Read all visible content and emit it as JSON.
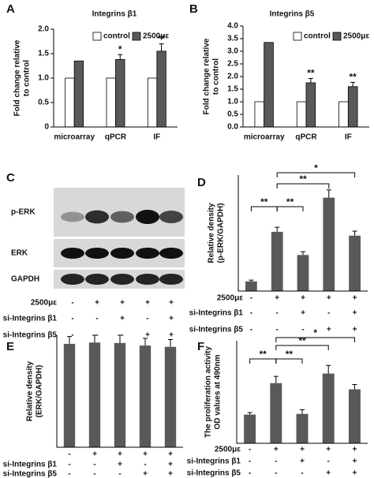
{
  "chart_data": [
    {
      "type": "grouped-bar",
      "panel": "A",
      "title": "Integrins β1",
      "ylabel": [
        "Fold change relative",
        "to control"
      ],
      "categories": [
        "microarray",
        "qPCR",
        "IF"
      ],
      "series": [
        {
          "name": "control",
          "color": "#ffffff",
          "values": [
            1,
            1,
            1
          ]
        },
        {
          "name": "2500με",
          "color": "#595959",
          "values": [
            1.35,
            1.38,
            1.55
          ],
          "errors": [
            null,
            0.1,
            0.15
          ]
        }
      ],
      "ylim": [
        0,
        2
      ],
      "yticks": [
        0,
        0.5,
        {
          "value": 1,
          "label": "1.0"
        },
        1.5,
        {
          "value": 2,
          "label": "2.0"
        }
      ],
      "annotations": [
        {
          "category": "qPCR",
          "text": "*"
        },
        {
          "category": "IF",
          "text": "**"
        }
      ],
      "legend": "top"
    },
    {
      "type": "grouped-bar",
      "panel": "B",
      "title": "Integrins β5",
      "ylabel": [
        "Fold change relative",
        "to control"
      ],
      "categories": [
        "microarray",
        "qPCR",
        "IF"
      ],
      "series": [
        {
          "name": "control",
          "color": "#ffffff",
          "values": [
            1,
            1,
            1
          ]
        },
        {
          "name": "2500με",
          "color": "#595959",
          "values": [
            3.35,
            1.75,
            1.6
          ],
          "errors": [
            null,
            0.17,
            0.17
          ]
        }
      ],
      "ylim": [
        0,
        4
      ],
      "yticks": [
        {
          "value": 0,
          "label": "0.0"
        },
        0.5,
        {
          "value": 1,
          "label": "1.0"
        },
        1.5,
        {
          "value": 2,
          "label": "2.0"
        },
        2.5,
        {
          "value": 3,
          "label": "3.0"
        },
        3.5,
        {
          "value": 4,
          "label": "4.0"
        }
      ],
      "annotations": [
        {
          "category": "qPCR",
          "text": "**"
        },
        {
          "category": "IF",
          "text": "**"
        }
      ],
      "legend": "top"
    },
    {
      "type": "bar",
      "panel": "D",
      "ylabel": [
        "Relative density",
        "(p-ERK/GAPDH)"
      ],
      "values": [
        1.5,
        9.2,
        5.6,
        14.5,
        8.6
      ],
      "errors": [
        0.2,
        0.7,
        0.5,
        1.2,
        0.7
      ],
      "color": "#595959",
      "ylim": [
        0,
        18
      ],
      "comparisons": [
        "**",
        "**",
        "**",
        "*"
      ],
      "conditions": {
        "labels": [
          "2500με",
          "si-Integrins β1",
          "si-Integrins β5"
        ],
        "rows": [
          [
            "-",
            "+",
            "+",
            "+",
            "+"
          ],
          [
            "-",
            "-",
            "+",
            "-",
            "+"
          ],
          [
            "-",
            "-",
            "-",
            "+",
            "+"
          ]
        ]
      }
    },
    {
      "type": "bar",
      "panel": "E",
      "ylabel": [
        "Relative density",
        "(ERK/GAPDH)"
      ],
      "values": [
        2.4,
        2.43,
        2.42,
        2.36,
        2.33
      ],
      "errors": [
        0.17,
        0.17,
        0.18,
        0.17,
        0.17
      ],
      "color": "#595959",
      "ylim": [
        0,
        2.6
      ],
      "conditions": {
        "labels": [
          null,
          "si-Integrins β1",
          "si-Integrins β5"
        ],
        "rows": [
          [
            "-",
            "+",
            "+",
            "+",
            "+"
          ],
          [
            "-",
            "-",
            "+",
            "-",
            "+"
          ],
          [
            "-",
            "-",
            "-",
            "+",
            "+"
          ]
        ]
      }
    },
    {
      "type": "bar",
      "panel": "F",
      "ylabel": [
        "The proliferation activity",
        "OD values at 490nm"
      ],
      "values": [
        0.42,
        0.88,
        0.43,
        1.02,
        0.79
      ],
      "errors": [
        0.03,
        0.1,
        0.06,
        0.12,
        0.07
      ],
      "color": "#595959",
      "ylim": [
        0,
        1.5
      ],
      "comparisons": [
        "**",
        "**",
        "**",
        "*"
      ],
      "conditions": {
        "labels": [
          "2500με",
          "si-Integrins β1",
          "si-Integrins β5"
        ],
        "rows": [
          [
            "-",
            "+",
            "+",
            "+",
            "+"
          ],
          [
            "-",
            "-",
            "+",
            "-",
            "+"
          ],
          [
            "-",
            "-",
            "-",
            "+",
            "+"
          ]
        ]
      }
    }
  ],
  "blot": {
    "panel": "C",
    "bands": [
      "p-ERK",
      "ERK",
      "GAPDH"
    ],
    "conditions": {
      "labels": [
        "2500με",
        "si-Integrins β1",
        "si-Integrins β5"
      ],
      "rows": [
        [
          "-",
          "+",
          "+",
          "+",
          "+"
        ],
        [
          "-",
          "-",
          "+",
          "-",
          "+"
        ],
        [
          "-",
          "-",
          "-",
          "+",
          "+"
        ]
      ]
    }
  }
}
